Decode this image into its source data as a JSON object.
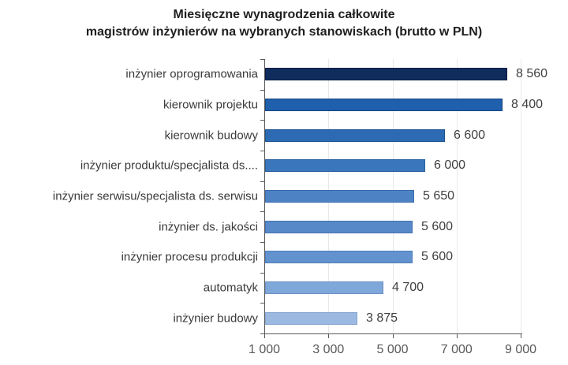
{
  "title": {
    "line1": "Miesięczne wynagrodzenia całkowite",
    "line2": "magistrów inżynierów na wybranych stanowiskach (brutto w PLN)"
  },
  "chart_data": {
    "type": "bar",
    "orientation": "horizontal",
    "title": "Miesięczne wynagrodzenia całkowite magistrów inżynierów na wybranych stanowiskach (brutto w PLN)",
    "categories": [
      "inżynier oprogramowania",
      "kierownik projektu",
      "kierownik budowy",
      "inżynier produktu/specjalista ds....",
      "inżynier serwisu/specjalista ds. serwisu",
      "inżynier ds. jakości",
      "inżynier procesu produkcji",
      "automatyk",
      "inżynier budowy"
    ],
    "values": [
      8560,
      8400,
      6600,
      6000,
      5650,
      5600,
      5600,
      4700,
      3875
    ],
    "value_labels": [
      "8 560",
      "8 400",
      "6 600",
      "6 000",
      "5 650",
      "5 600",
      "5 600",
      "4 700",
      "3 875"
    ],
    "xlim": [
      1000,
      9000
    ],
    "x_tick_values": [
      1000,
      3000,
      5000,
      7000,
      9000
    ],
    "x_tick_labels": [
      "1 000",
      "3 000",
      "5 000",
      "7 000",
      "9 000"
    ],
    "grid": "vertical",
    "legend": "none",
    "gridline_color": "#e8e8e8",
    "axis_color": "#595959",
    "bar_fill_colors": [
      "#0f2c5c",
      "#1f5fac",
      "#2c6bb3",
      "#3a76bb",
      "#4d83c5",
      "#5789c9",
      "#6393cf",
      "#80a7da",
      "#9cb9e2"
    ],
    "bar_border_colors": [
      "#081d3f",
      "#154680",
      "#1e5390",
      "#2a5f9d",
      "#3b6cac",
      "#4473b1",
      "#4f7eb9",
      "#6a91c5",
      "#86a4cf"
    ]
  }
}
